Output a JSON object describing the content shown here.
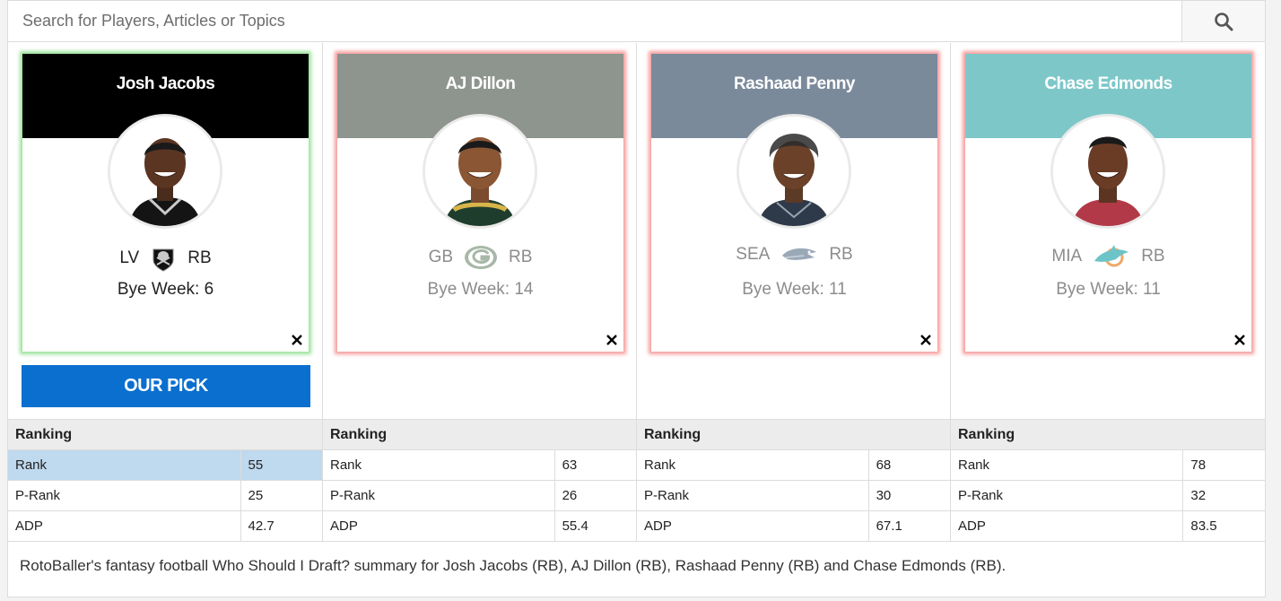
{
  "search": {
    "placeholder": "Search for Players, Articles or Topics",
    "icon": "search-icon"
  },
  "players": [
    {
      "name": "Josh Jacobs",
      "team": "LV",
      "position": "RB",
      "bye": "Bye Week: 6",
      "header_color": "#000000",
      "status": "picked",
      "ranking": {
        "title": "Ranking",
        "rows": [
          {
            "label": "Rank",
            "value": "55"
          },
          {
            "label": "P-Rank",
            "value": "25"
          },
          {
            "label": "ADP",
            "value": "42.7"
          }
        ]
      }
    },
    {
      "name": "AJ Dillon",
      "team": "GB",
      "position": "RB",
      "bye": "Bye Week: 14",
      "header_color": "#8e948e",
      "status": "other",
      "ranking": {
        "title": "Ranking",
        "rows": [
          {
            "label": "Rank",
            "value": "63"
          },
          {
            "label": "P-Rank",
            "value": "26"
          },
          {
            "label": "ADP",
            "value": "55.4"
          }
        ]
      }
    },
    {
      "name": "Rashaad Penny",
      "team": "SEA",
      "position": "RB",
      "bye": "Bye Week: 11",
      "header_color": "#7b8a9b",
      "status": "other",
      "ranking": {
        "title": "Ranking",
        "rows": [
          {
            "label": "Rank",
            "value": "68"
          },
          {
            "label": "P-Rank",
            "value": "30"
          },
          {
            "label": "ADP",
            "value": "67.1"
          }
        ]
      }
    },
    {
      "name": "Chase Edmonds",
      "team": "MIA",
      "position": "RB",
      "bye": "Bye Week: 11",
      "header_color": "#7ec7c9",
      "status": "other",
      "ranking": {
        "title": "Ranking",
        "rows": [
          {
            "label": "Rank",
            "value": "78"
          },
          {
            "label": "P-Rank",
            "value": "32"
          },
          {
            "label": "ADP",
            "value": "83.5"
          }
        ]
      }
    }
  ],
  "our_pick_label": "OUR PICK",
  "summary": "RotoBaller's fantasy football Who Should I Draft? summary for Josh Jacobs (RB), AJ Dillon (RB), Rashaad Penny (RB) and Chase Edmonds (RB).",
  "colors": {
    "pick_button": "#0a6fcf",
    "pick_glow": "#82dc82",
    "other_glow": "#f58c8c",
    "highlight_cell": "#bfd9ee"
  }
}
